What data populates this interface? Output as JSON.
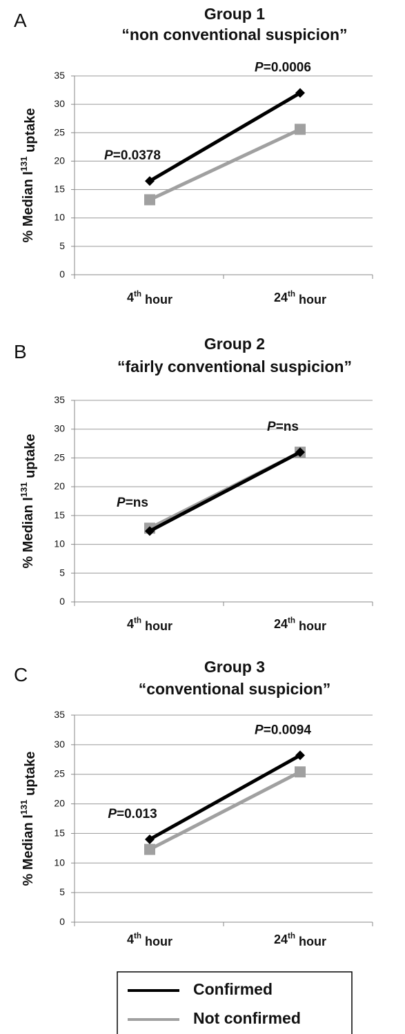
{
  "chart_data": [
    {
      "type": "line",
      "panel": "A",
      "title": [
        "Group 1",
        "“non conventional suspicion”"
      ],
      "ylabel": "% Median I131 uptake",
      "categories": [
        "4th hour",
        "24th hour"
      ],
      "ylim": [
        0,
        35
      ],
      "yticks": [
        0,
        5,
        10,
        15,
        20,
        25,
        30,
        35
      ],
      "grid": true,
      "series": [
        {
          "color": "#000000",
          "marker": "diamond",
          "values": [
            16.5,
            32
          ]
        },
        {
          "color": "#a0a0a0",
          "marker": "square",
          "values": [
            13.2,
            25.6
          ]
        }
      ],
      "annotations": [
        "P=0.0378",
        "P=0.0006"
      ]
    },
    {
      "type": "line",
      "panel": "B",
      "title": [
        "Group 2",
        "“fairly conventional suspicion”"
      ],
      "ylabel": "% Median I131 uptake",
      "categories": [
        "4th hour",
        "24th hour"
      ],
      "ylim": [
        0,
        35
      ],
      "yticks": [
        0,
        5,
        10,
        15,
        20,
        25,
        30,
        35
      ],
      "grid": true,
      "series": [
        {
          "color": "#000000",
          "marker": "diamond",
          "values": [
            12.3,
            26
          ]
        },
        {
          "color": "#a0a0a0",
          "marker": "square",
          "values": [
            12.8,
            26
          ]
        }
      ],
      "annotations": [
        "P=ns",
        "P=ns"
      ]
    },
    {
      "type": "line",
      "panel": "C",
      "title": [
        "Group 3",
        "“conventional suspicion”"
      ],
      "ylabel": "% Median I131 uptake",
      "categories": [
        "4th hour",
        "24th hour"
      ],
      "ylim": [
        0,
        35
      ],
      "yticks": [
        0,
        5,
        10,
        15,
        20,
        25,
        30,
        35
      ],
      "grid": true,
      "legend": "bottom",
      "series": [
        {
          "name": "Confirmed",
          "color": "#000000",
          "marker": "diamond",
          "values": [
            14,
            28.2
          ]
        },
        {
          "name": "Not confirmed",
          "color": "#a0a0a0",
          "marker": "square",
          "values": [
            12.3,
            25.4
          ]
        }
      ],
      "annotations": [
        "P=0.013",
        "P=0.0094"
      ]
    }
  ]
}
